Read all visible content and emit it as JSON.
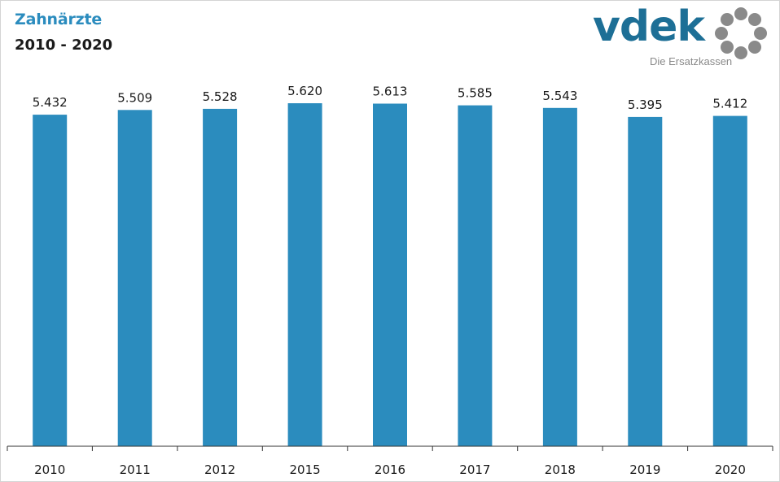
{
  "header": {
    "title": "Zahnärzte",
    "subtitle": "2010 - 2020"
  },
  "logo": {
    "word": "vdek",
    "tagline": "Die Ersatzkassen"
  },
  "colors": {
    "bar": "#2b8cbe",
    "title": "#2b8cbe",
    "logo_blue": "#1d6f96",
    "logo_gray": "#8a8a8a"
  },
  "chart_data": {
    "type": "bar",
    "title": "Zahnärzte",
    "subtitle": "2010 - 2020",
    "xlabel": "",
    "ylabel": "",
    "categories": [
      "2010",
      "2011",
      "2012",
      "2015",
      "2016",
      "2017",
      "2018",
      "2019",
      "2020"
    ],
    "values": [
      5432,
      5509,
      5528,
      5620,
      5613,
      5585,
      5543,
      5395,
      5412
    ],
    "value_labels": [
      "5.432",
      "5.509",
      "5.528",
      "5.620",
      "5.613",
      "5.585",
      "5.543",
      "5.395",
      "5.412"
    ],
    "ylim": [
      0,
      5620
    ],
    "grid": false,
    "legend": "none"
  }
}
